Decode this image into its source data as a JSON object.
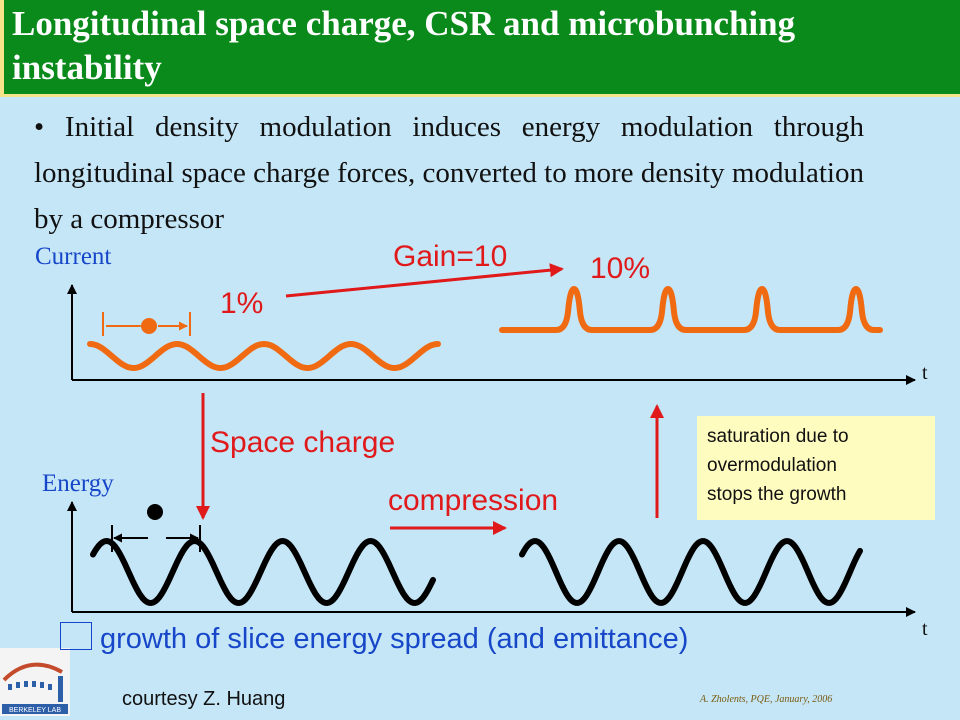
{
  "title": "Longitudinal space charge, CSR and microbunching instability",
  "bullet": "• Initial density modulation induces energy modulation through longitudinal space charge forces, converted to more density modulation by a compressor",
  "diagram": {
    "current_label": "Current",
    "energy_label": "Energy",
    "t_label_top": "t",
    "t_label_bottom": "t",
    "gain_label": "Gain=10",
    "initial_mod": "1%",
    "final_mod": "10%",
    "space_charge_label": "Space charge",
    "compression_label": "compression",
    "saturation_note": [
      "saturation due to",
      "overmodulation",
      "stops the growth"
    ]
  },
  "conclusion": "growth of slice energy spread (and emittance)",
  "conclusion_arrow": "",
  "courtesy": "courtesy Z. Huang",
  "logo_text": "BERKELEY LAB",
  "footer": "A. Zholents, PQE, January, 2006",
  "colors": {
    "title_bg": "#0a8a1a",
    "slide_bg": "#c5e6f7",
    "accent_red": "#e0191b",
    "wave_orange": "#f06a12",
    "label_blue": "#1747c9",
    "note_bg": "#fffcc0"
  }
}
